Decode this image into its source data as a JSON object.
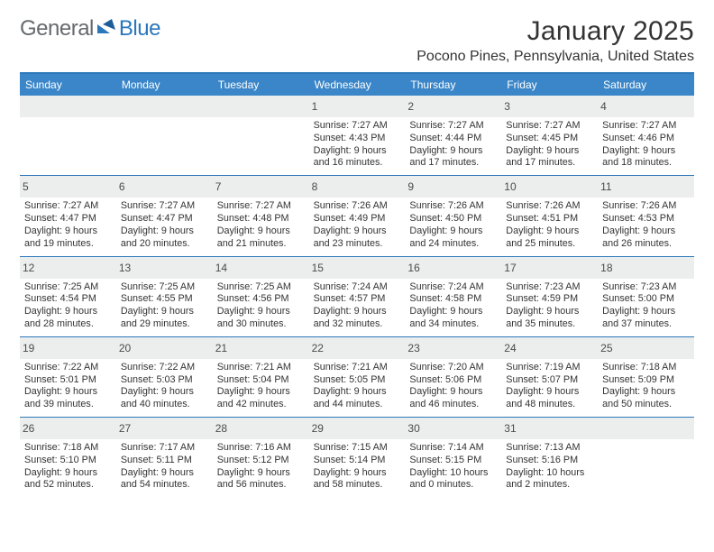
{
  "brand": {
    "text_general": "General",
    "text_blue": "Blue"
  },
  "header": {
    "month_title": "January 2025",
    "location": "Pocono Pines, Pennsylvania, United States"
  },
  "colors": {
    "header_bar": "#3a86c8",
    "header_border": "#2d78ba",
    "daynum_bg": "#eceeee",
    "text": "#333333",
    "brand_gray": "#666a6e",
    "brand_blue": "#2a77bb"
  },
  "typography": {
    "month_title_fontsize": 30,
    "location_fontsize": 16,
    "day_header_fontsize": 12,
    "day_num_fontsize": 12,
    "body_fontsize": 10.8
  },
  "day_labels": [
    "Sunday",
    "Monday",
    "Tuesday",
    "Wednesday",
    "Thursday",
    "Friday",
    "Saturday"
  ],
  "weeks": [
    [
      null,
      null,
      null,
      {
        "n": "1",
        "sunrise": "7:27 AM",
        "sunset": "4:43 PM",
        "daylight": "9 hours and 16 minutes."
      },
      {
        "n": "2",
        "sunrise": "7:27 AM",
        "sunset": "4:44 PM",
        "daylight": "9 hours and 17 minutes."
      },
      {
        "n": "3",
        "sunrise": "7:27 AM",
        "sunset": "4:45 PM",
        "daylight": "9 hours and 17 minutes."
      },
      {
        "n": "4",
        "sunrise": "7:27 AM",
        "sunset": "4:46 PM",
        "daylight": "9 hours and 18 minutes."
      }
    ],
    [
      {
        "n": "5",
        "sunrise": "7:27 AM",
        "sunset": "4:47 PM",
        "daylight": "9 hours and 19 minutes."
      },
      {
        "n": "6",
        "sunrise": "7:27 AM",
        "sunset": "4:47 PM",
        "daylight": "9 hours and 20 minutes."
      },
      {
        "n": "7",
        "sunrise": "7:27 AM",
        "sunset": "4:48 PM",
        "daylight": "9 hours and 21 minutes."
      },
      {
        "n": "8",
        "sunrise": "7:26 AM",
        "sunset": "4:49 PM",
        "daylight": "9 hours and 23 minutes."
      },
      {
        "n": "9",
        "sunrise": "7:26 AM",
        "sunset": "4:50 PM",
        "daylight": "9 hours and 24 minutes."
      },
      {
        "n": "10",
        "sunrise": "7:26 AM",
        "sunset": "4:51 PM",
        "daylight": "9 hours and 25 minutes."
      },
      {
        "n": "11",
        "sunrise": "7:26 AM",
        "sunset": "4:53 PM",
        "daylight": "9 hours and 26 minutes."
      }
    ],
    [
      {
        "n": "12",
        "sunrise": "7:25 AM",
        "sunset": "4:54 PM",
        "daylight": "9 hours and 28 minutes."
      },
      {
        "n": "13",
        "sunrise": "7:25 AM",
        "sunset": "4:55 PM",
        "daylight": "9 hours and 29 minutes."
      },
      {
        "n": "14",
        "sunrise": "7:25 AM",
        "sunset": "4:56 PM",
        "daylight": "9 hours and 30 minutes."
      },
      {
        "n": "15",
        "sunrise": "7:24 AM",
        "sunset": "4:57 PM",
        "daylight": "9 hours and 32 minutes."
      },
      {
        "n": "16",
        "sunrise": "7:24 AM",
        "sunset": "4:58 PM",
        "daylight": "9 hours and 34 minutes."
      },
      {
        "n": "17",
        "sunrise": "7:23 AM",
        "sunset": "4:59 PM",
        "daylight": "9 hours and 35 minutes."
      },
      {
        "n": "18",
        "sunrise": "7:23 AM",
        "sunset": "5:00 PM",
        "daylight": "9 hours and 37 minutes."
      }
    ],
    [
      {
        "n": "19",
        "sunrise": "7:22 AM",
        "sunset": "5:01 PM",
        "daylight": "9 hours and 39 minutes."
      },
      {
        "n": "20",
        "sunrise": "7:22 AM",
        "sunset": "5:03 PM",
        "daylight": "9 hours and 40 minutes."
      },
      {
        "n": "21",
        "sunrise": "7:21 AM",
        "sunset": "5:04 PM",
        "daylight": "9 hours and 42 minutes."
      },
      {
        "n": "22",
        "sunrise": "7:21 AM",
        "sunset": "5:05 PM",
        "daylight": "9 hours and 44 minutes."
      },
      {
        "n": "23",
        "sunrise": "7:20 AM",
        "sunset": "5:06 PM",
        "daylight": "9 hours and 46 minutes."
      },
      {
        "n": "24",
        "sunrise": "7:19 AM",
        "sunset": "5:07 PM",
        "daylight": "9 hours and 48 minutes."
      },
      {
        "n": "25",
        "sunrise": "7:18 AM",
        "sunset": "5:09 PM",
        "daylight": "9 hours and 50 minutes."
      }
    ],
    [
      {
        "n": "26",
        "sunrise": "7:18 AM",
        "sunset": "5:10 PM",
        "daylight": "9 hours and 52 minutes."
      },
      {
        "n": "27",
        "sunrise": "7:17 AM",
        "sunset": "5:11 PM",
        "daylight": "9 hours and 54 minutes."
      },
      {
        "n": "28",
        "sunrise": "7:16 AM",
        "sunset": "5:12 PM",
        "daylight": "9 hours and 56 minutes."
      },
      {
        "n": "29",
        "sunrise": "7:15 AM",
        "sunset": "5:14 PM",
        "daylight": "9 hours and 58 minutes."
      },
      {
        "n": "30",
        "sunrise": "7:14 AM",
        "sunset": "5:15 PM",
        "daylight": "10 hours and 0 minutes."
      },
      {
        "n": "31",
        "sunrise": "7:13 AM",
        "sunset": "5:16 PM",
        "daylight": "10 hours and 2 minutes."
      },
      null
    ]
  ],
  "labels": {
    "sunrise_prefix": "Sunrise: ",
    "sunset_prefix": "Sunset: ",
    "daylight_prefix": "Daylight: "
  }
}
